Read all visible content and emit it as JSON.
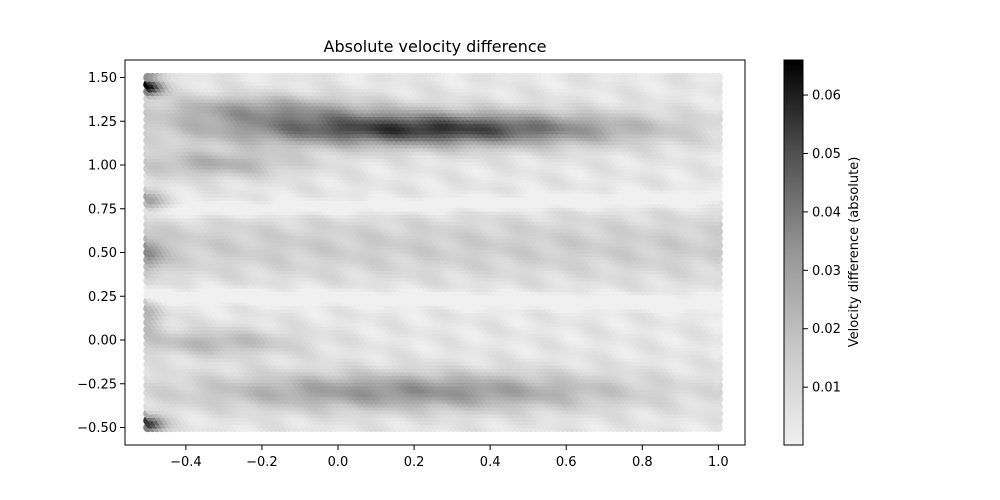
{
  "chart_data": {
    "type": "scatter",
    "title": "Absolute velocity difference",
    "xlabel": "",
    "ylabel": "",
    "xlim": [
      -0.56,
      1.07
    ],
    "ylim": [
      -0.6,
      1.6
    ],
    "x_ticks": [
      -0.4,
      -0.2,
      0.0,
      0.2,
      0.4,
      0.6,
      0.8,
      1.0
    ],
    "x_tick_labels": [
      "−0.4",
      "−0.2",
      "0.0",
      "0.2",
      "0.4",
      "0.6",
      "0.8",
      "1.0"
    ],
    "y_ticks": [
      -0.5,
      -0.25,
      0.0,
      0.25,
      0.5,
      0.75,
      1.0,
      1.25,
      1.5
    ],
    "y_tick_labels": [
      "−0.50",
      "−0.25",
      "0.00",
      "0.25",
      "0.50",
      "0.75",
      "1.00",
      "1.25",
      "1.50"
    ],
    "grid": false,
    "marker": "circle",
    "colormap": "Greys",
    "domain": {
      "x": [
        -0.5,
        1.0
      ],
      "y": [
        -0.5,
        1.5
      ]
    },
    "colorbar": {
      "label": "Velocity difference (absolute)",
      "range": [
        0.0001,
        0.066
      ],
      "ticks": [
        0.01,
        0.02,
        0.03,
        0.04,
        0.05,
        0.06
      ],
      "tick_labels": [
        "0.01",
        "0.02",
        "0.03",
        "0.04",
        "0.05",
        "0.06"
      ],
      "color_low": "#f0f0f0",
      "color_high": "#000000"
    },
    "field_features": [
      {
        "region": "upper dark band",
        "center_x": 0.2,
        "center_y": 1.22,
        "max_value": 0.058
      },
      {
        "region": "lower dark band",
        "center_x": 0.2,
        "center_y": -0.28,
        "max_value": 0.035
      },
      {
        "region": "top-left corner",
        "x": -0.5,
        "y": 1.45,
        "value": 0.066
      },
      {
        "region": "bottom-left corner",
        "x": -0.5,
        "y": -0.47,
        "value": 0.06
      },
      {
        "region": "central band",
        "y": 0.55,
        "value": 0.012
      },
      {
        "region": "upper-left lobe",
        "x": -0.3,
        "y": 1.02,
        "value": 0.03
      },
      {
        "region": "lower-left lobe",
        "x": -0.3,
        "y": 0.0,
        "value": 0.022
      }
    ]
  }
}
